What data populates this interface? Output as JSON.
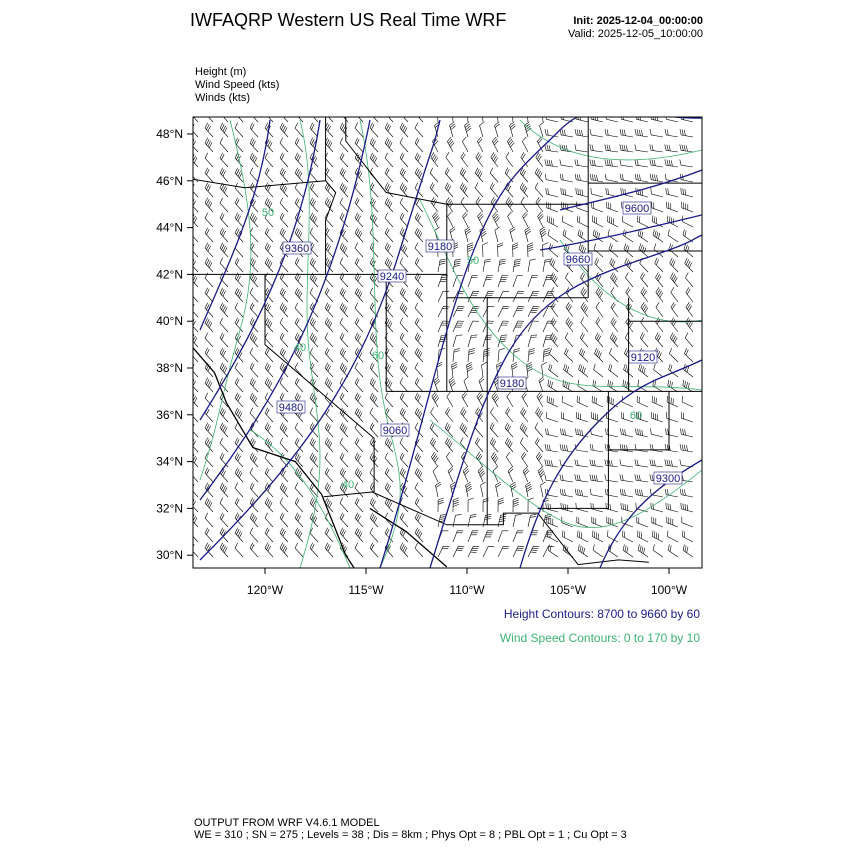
{
  "header": {
    "title": "IWFAQRP Western US Real Time WRF",
    "init": "Init: 2025-12-04_00:00:00",
    "valid": "Valid: 2025-12-05_10:00:00"
  },
  "fields": [
    "Height   (m)",
    "Wind Speed   (kts)",
    "Winds   (kts)"
  ],
  "map": {
    "lat_labels": [
      "48°N",
      "46°N",
      "44°N",
      "42°N",
      "40°N",
      "38°N",
      "36°N",
      "34°N",
      "32°N",
      "30°N"
    ],
    "lon_labels": [
      "120°W",
      "115°W",
      "110°W",
      "105°W",
      "100°W"
    ],
    "height_contour_labels": [
      "9360",
      "9180",
      "9240",
      "9600",
      "9660",
      "9120",
      "9180",
      "9480",
      "9060",
      "9300"
    ],
    "speed_contour_labels": [
      "50",
      "40",
      "60",
      "50",
      "40",
      "60"
    ]
  },
  "legend": {
    "height": "Height Contours: 8700 to 9660 by 60",
    "speed": "Wind Speed Contours: 0 to 170 by 10"
  },
  "footer": {
    "line1": "OUTPUT FROM WRF V4.6.1 MODEL",
    "line2": "WE = 310 ; SN = 275 ; Levels = 38 ; Dis = 8km ; Phys Opt = 8 ; PBL Opt = 1 ; Cu Opt = 3"
  }
}
